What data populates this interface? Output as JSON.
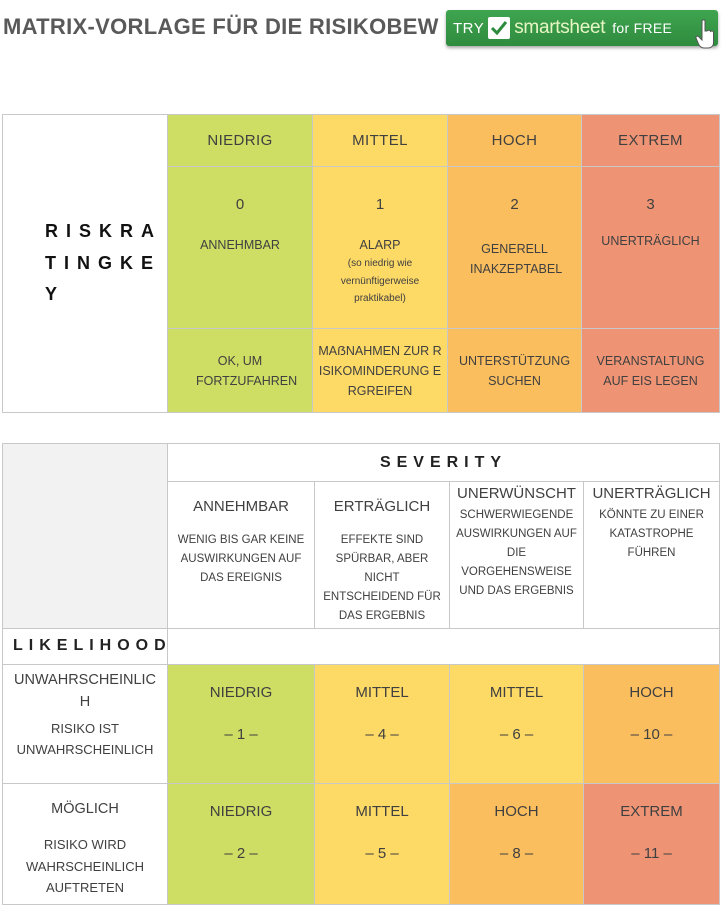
{
  "title": "MATRIX-VORLAGE FÜR DIE RISIKOBEW",
  "promo": {
    "try": "TRY",
    "brand": "smartsheet",
    "free": "for FREE"
  },
  "rating_table": {
    "label": "RISKRATINGKEY",
    "levels": [
      {
        "name": "NIEDRIG",
        "score": "0",
        "meaning": "ANNEHMBAR",
        "note": "",
        "action": "OK, UM FORTZUFAHREN",
        "color": "#cedd63"
      },
      {
        "name": "MITTEL",
        "score": "1",
        "meaning": "ALARP",
        "note": "(so niedrig wie vernünftigerweise praktikabel)",
        "action": "MAẞNAHMEN ZUR RISIKOMINDERUNG ERGREIFEN",
        "color": "#fdd966"
      },
      {
        "name": "HOCH",
        "score": "2",
        "meaning": "GENERELL INAKZEPTABEL",
        "note": "",
        "action": "UNTERSTÜTZUNG SUCHEN",
        "color": "#fbbe5e"
      },
      {
        "name": "EXTREM",
        "score": "3",
        "meaning": "UNERTRÄGLICH",
        "note": "",
        "action": "VERANSTALTUNG AUF EIS LEGEN",
        "color": "#ee9475"
      }
    ]
  },
  "matrix": {
    "severity_label": "SEVERITY",
    "likelihood_label": "LIKELIHOOD",
    "severity": [
      {
        "title": "ANNEHMBAR",
        "desc": "WENIG BIS GAR KEINE AUSWIRKUNGEN AUF DAS EREIGNIS"
      },
      {
        "title": "ERTRÄGLICH",
        "desc": "EFFEKTE SIND SPÜRBAR, ABER NICHT ENTSCHEIDEND FÜR DAS ERGEBNIS"
      },
      {
        "title": "UNERWÜNSCHT",
        "desc": "SCHWERWIEGENDE AUSWIRKUNGEN AUF DIE VORGEHENSWEISE UND DAS ERGEBNIS"
      },
      {
        "title": "UNERTRÄGLICH",
        "desc": "KÖNNTE ZU EINER KATASTROPHE FÜHREN"
      }
    ],
    "rows": [
      {
        "name": "UNWAHRSCHEINLICH",
        "desc": "RISIKO IST UNWAHRSCHEINLICH",
        "cells": [
          {
            "level": "NIEDRIG",
            "value": "– 1 –",
            "color": "#cedd63"
          },
          {
            "level": "MITTEL",
            "value": "– 4 –",
            "color": "#fdd966"
          },
          {
            "level": "MITTEL",
            "value": "– 6 –",
            "color": "#fdd966"
          },
          {
            "level": "HOCH",
            "value": "– 10 –",
            "color": "#fbbe5e"
          }
        ]
      },
      {
        "name": "MÖGLICH",
        "desc": "RISIKO WIRD WAHRSCHEINLICH AUFTRETEN",
        "cells": [
          {
            "level": "NIEDRIG",
            "value": "– 2 –",
            "color": "#cedd63"
          },
          {
            "level": "MITTEL",
            "value": "– 5 –",
            "color": "#fdd966"
          },
          {
            "level": "HOCH",
            "value": "– 8 –",
            "color": "#fbbe5e"
          },
          {
            "level": "EXTREM",
            "value": "– 11 –",
            "color": "#ee9475"
          }
        ]
      }
    ]
  }
}
